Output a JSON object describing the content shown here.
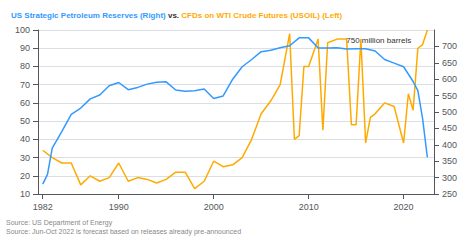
{
  "chart_data": {
    "type": "line",
    "title": "US Strategic Petroleum Reserves (Right) vs. CFDs on WTI Crude Futures (USOIL) (Left)",
    "xlim": [
      1981.5,
      2023.2
    ],
    "xticks": [
      1982,
      1990,
      2000,
      2010,
      2020
    ],
    "ylim": [
      10,
      100
    ],
    "yticks": [
      10,
      20,
      30,
      40,
      50,
      60,
      70,
      80,
      90,
      100
    ],
    "y2lim": [
      250,
      750
    ],
    "y2ticks": [
      250,
      300,
      350,
      400,
      450,
      500,
      550,
      600,
      650,
      700
    ],
    "grid": true,
    "series": [
      {
        "name": "CFDs on WTI Crude Futures (USOIL) (Left)",
        "color": "#ffaa00",
        "x": [
          1982,
          1983,
          1984,
          1985,
          1986,
          1987,
          1988,
          1989,
          1990,
          1991,
          1992,
          1993,
          1994,
          1995,
          1996,
          1997,
          1998,
          1999,
          2000,
          2001,
          2002,
          2003,
          2004,
          2005,
          2006,
          2007,
          2008,
          2008.5,
          2009,
          2009.5,
          2010,
          2011,
          2011.5,
          2012,
          2013,
          2014,
          2014.5,
          2015,
          2015.5,
          2016,
          2016.5,
          2017,
          2018,
          2019,
          2020,
          2020.5,
          2021,
          2021.5,
          2022,
          2022.5
        ],
        "values": [
          34,
          30,
          27,
          27,
          15,
          20,
          17,
          19,
          27,
          17,
          19,
          18,
          16,
          18,
          22,
          22,
          13,
          17,
          28,
          25,
          26,
          30,
          40,
          54,
          61,
          70,
          98,
          40,
          42,
          80,
          80,
          95,
          45,
          93,
          95,
          95,
          48,
          48,
          95,
          38,
          52,
          54,
          60,
          58,
          38,
          65,
          56,
          90,
          92,
          100
        ]
      },
      {
        "name": "US Strategic Petroleum Reserves (Right)",
        "color": "#3399ff",
        "axis": "y2",
        "x": [
          1982,
          1982.5,
          1983,
          1984,
          1985,
          1986,
          1987,
          1988,
          1989,
          1990,
          1991,
          1992,
          1993,
          1994,
          1995,
          1996,
          1997,
          1998,
          1999,
          2000,
          2001,
          2002,
          2003,
          2004,
          2005,
          2006,
          2007,
          2008,
          2009,
          2010,
          2011,
          2012,
          2013,
          2014,
          2015,
          2016,
          2017,
          2018,
          2019,
          2020,
          2021,
          2021.5,
          2022.0,
          2022.5
        ],
        "values": [
          280,
          310,
          390,
          440,
          493,
          512,
          540,
          552,
          580,
          590,
          568,
          575,
          585,
          591,
          592,
          567,
          563,
          565,
          570,
          541,
          549,
          600,
          638,
          660,
          684,
          688,
          696,
          702,
          726,
          726,
          695,
          695,
          696,
          692,
          693,
          693,
          686,
          660,
          649,
          638,
          593,
          565,
          480,
          362
        ]
      }
    ],
    "annotations": [
      {
        "text": "750 million barrels",
        "x": 2020.8,
        "y": 718,
        "axis": "y2"
      },
      {
        "text": "Source: US Department of Energy"
      },
      {
        "text": "Source: Jun-Oct 2022 is forecast based on releases already pre-announced"
      }
    ]
  }
}
